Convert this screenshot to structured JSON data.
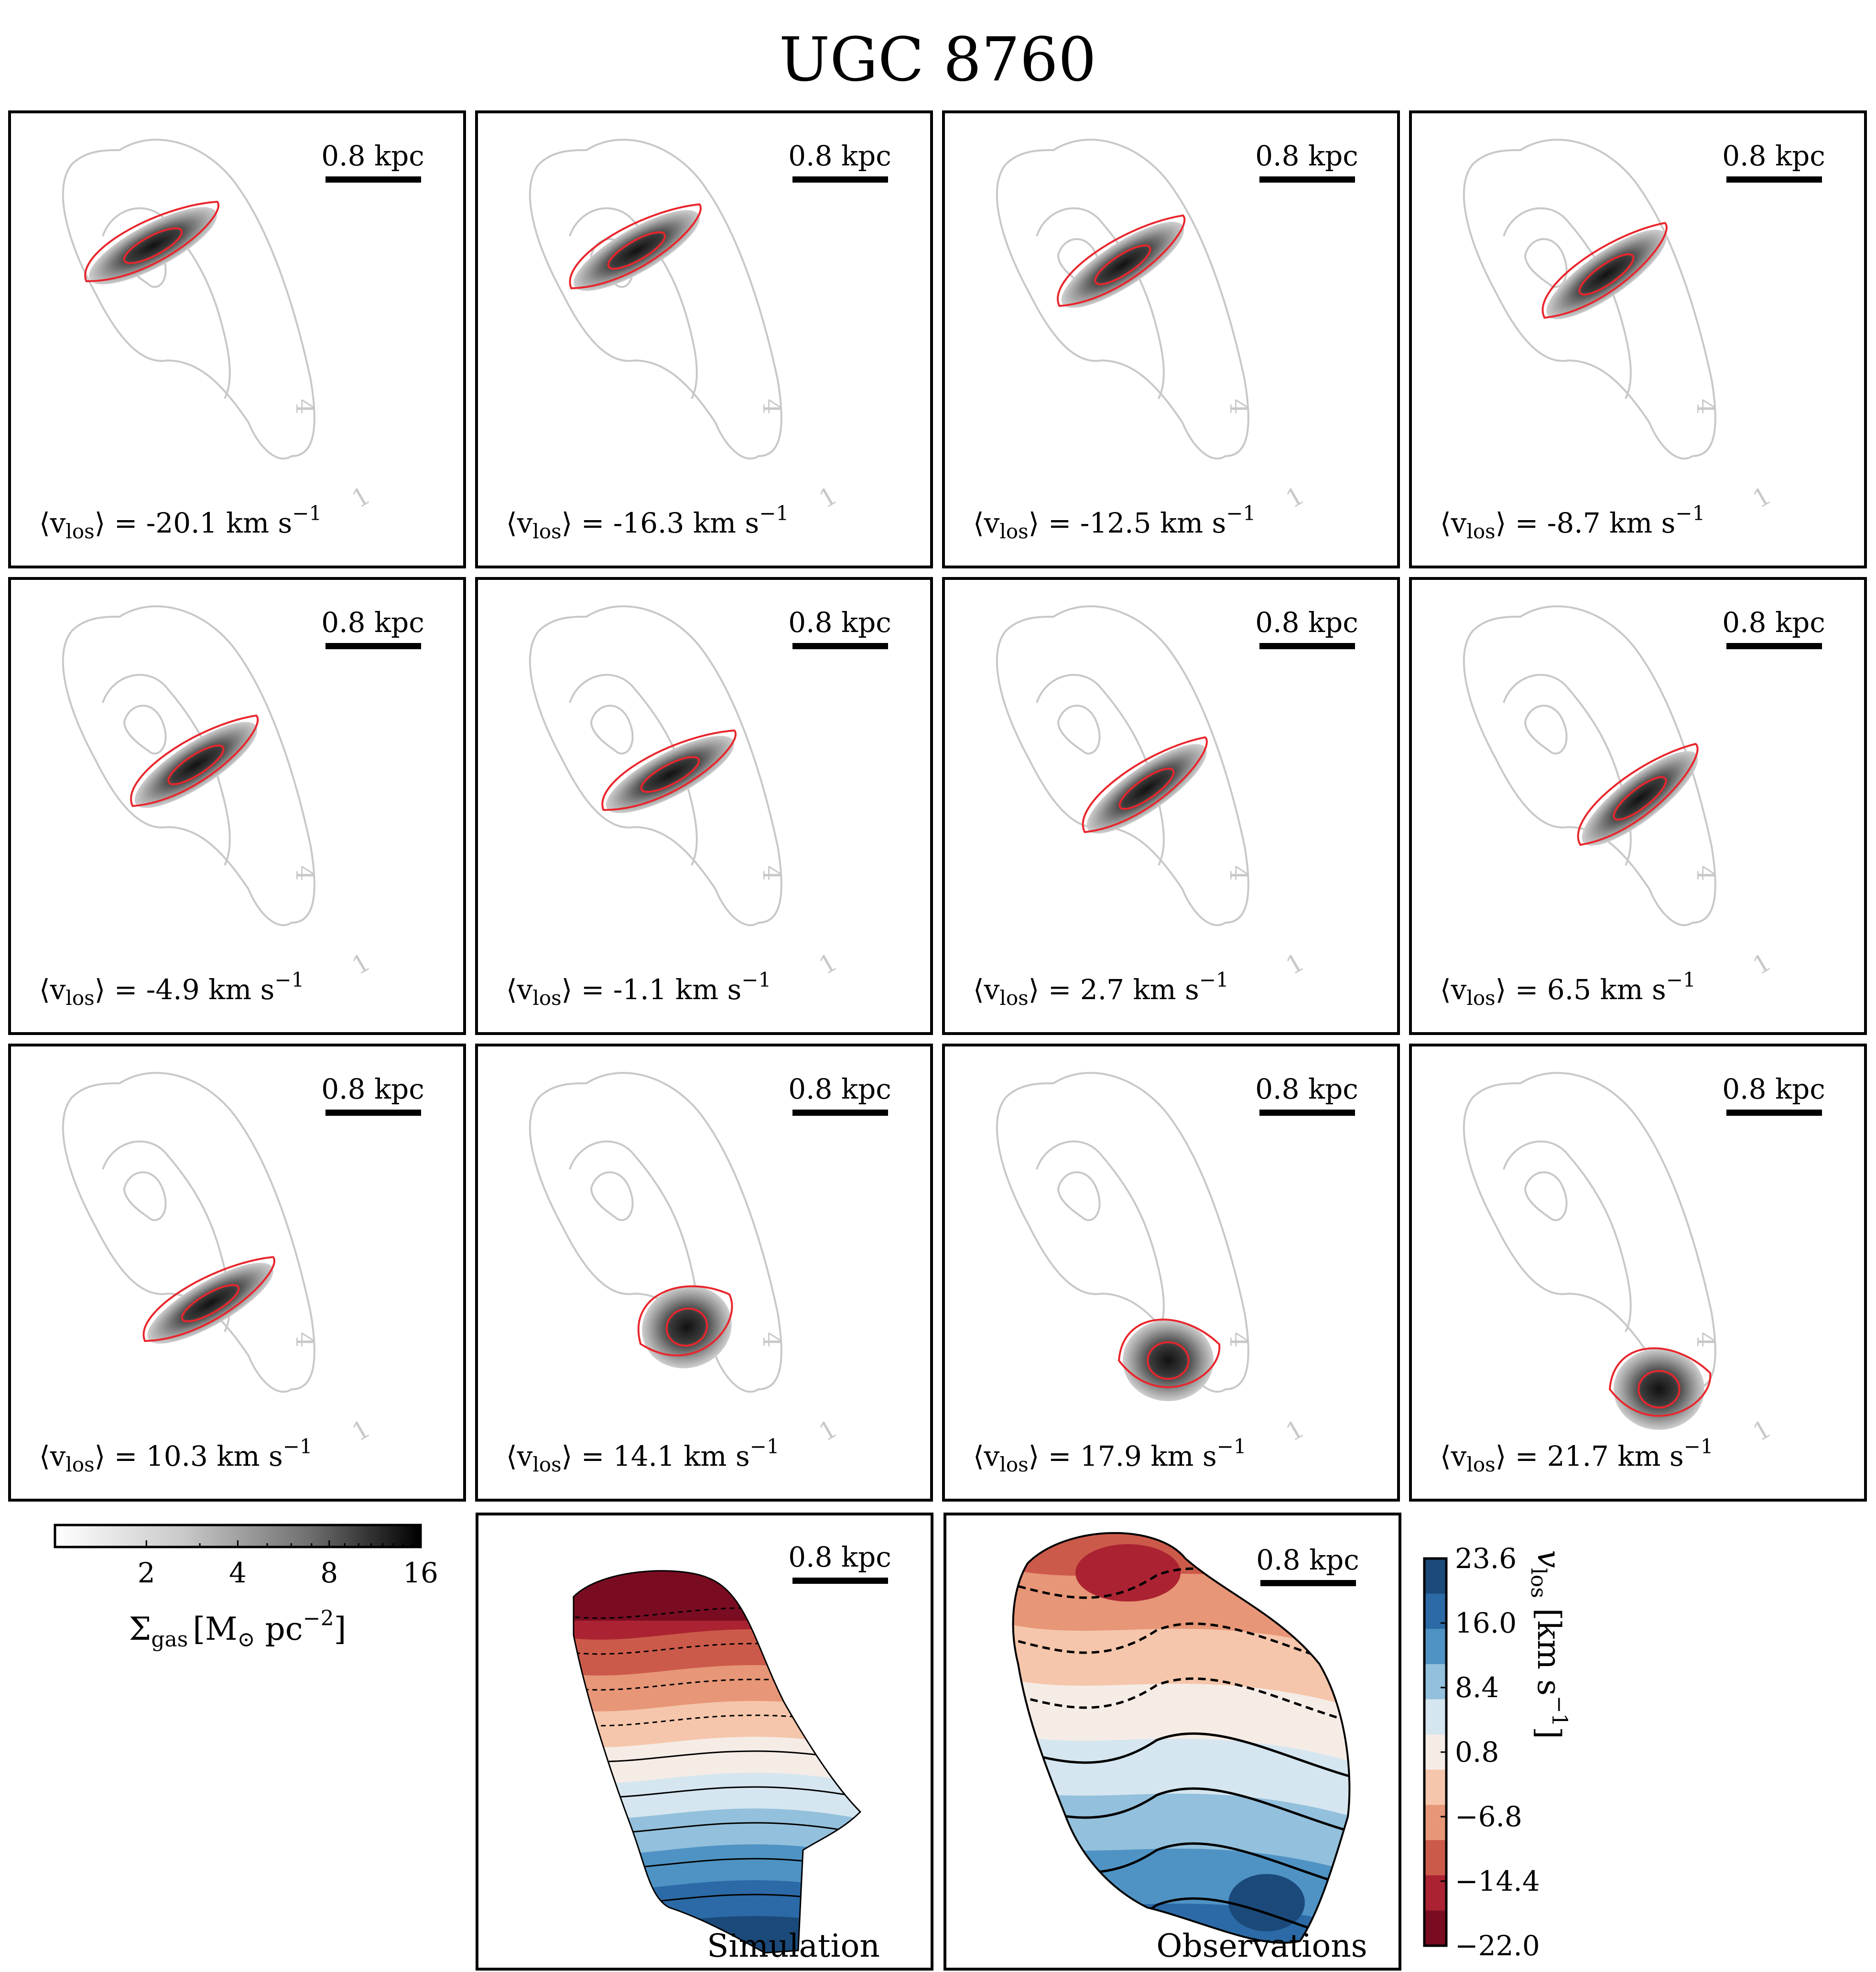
{
  "title": "UGC 8760",
  "scale_bar_label": "0.8 kpc",
  "contour_labels": [
    "4",
    "1"
  ],
  "velocity_prefix": "⟨v",
  "velocity_sub": "los",
  "velocity_suffix": "⟩ =",
  "velocity_unit": "km s",
  "velocity_unit_exp": "−1",
  "channels": [
    {
      "v": "-20.1"
    },
    {
      "v": "-16.3"
    },
    {
      "v": "-12.5"
    },
    {
      "v": "-8.7"
    },
    {
      "v": "-4.9"
    },
    {
      "v": "-1.1"
    },
    {
      "v": "2.7"
    },
    {
      "v": "6.5"
    },
    {
      "v": "10.3"
    },
    {
      "v": "14.1"
    },
    {
      "v": "17.9"
    },
    {
      "v": "21.7"
    }
  ],
  "gas_colorbar": {
    "ticks": [
      "2",
      "4",
      "8",
      "16"
    ],
    "label_main": "Σ",
    "label_sub": "gas",
    "label_unit": "[M",
    "label_sun": "⊙",
    "label_rest": " pc",
    "label_exp": "−2",
    "label_close": "]",
    "scale": "log",
    "range": [
      1,
      16
    ],
    "colormap": "greys"
  },
  "velocity_colorbar": {
    "ticks": [
      "23.6",
      "16.0",
      "8.4",
      "0.8",
      "−6.8",
      "−14.4",
      "−22.0"
    ],
    "label_main": "v",
    "label_sub": "los",
    "label_unit": " [km s",
    "label_exp": "−1",
    "label_close": "]",
    "colors": [
      "#1b4a7a",
      "#2b6aa6",
      "#4f93c4",
      "#93c0dc",
      "#d5e6f0",
      "#f6ece6",
      "#f5c6ab",
      "#e79677",
      "#cc5a4a",
      "#ab2332",
      "#7a0c22"
    ]
  },
  "map_labels": {
    "simulation": "Simulation",
    "observations": "Observations"
  },
  "chart_data": {
    "type": "heatmap",
    "title": "UGC 8760",
    "channel_velocities_km_s": [
      -20.1,
      -16.3,
      -12.5,
      -8.7,
      -4.9,
      -1.1,
      2.7,
      6.5,
      10.3,
      14.1,
      17.9,
      21.7
    ],
    "gas_surface_density_ticks": [
      2,
      4,
      8,
      16
    ],
    "velocity_colorbar_ticks": [
      23.6,
      16.0,
      8.4,
      0.8,
      -6.8,
      -14.4,
      -22.0
    ],
    "velocity_range": [
      -22.0,
      23.6
    ]
  }
}
